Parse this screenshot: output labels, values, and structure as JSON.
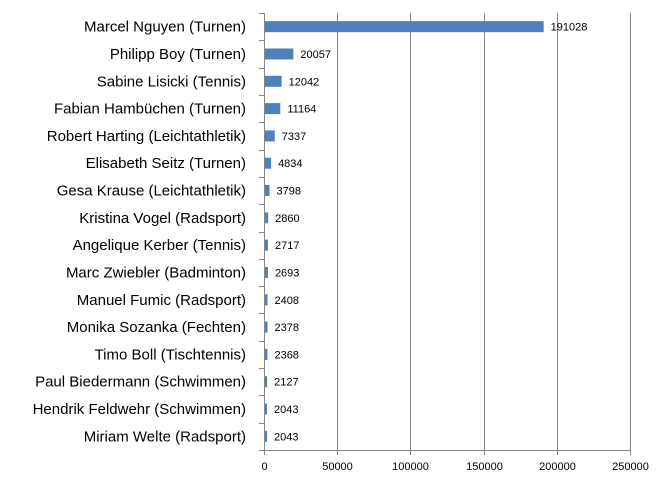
{
  "chart_data": {
    "type": "bar",
    "orientation": "horizontal",
    "title": "",
    "xlabel": "",
    "ylabel": "",
    "categories": [
      "Marcel Nguyen (Turnen)",
      "Philipp Boy (Turnen)",
      "Sabine Lisicki (Tennis)",
      "Fabian Hambüchen (Turnen)",
      "Robert Harting (Leichtathletik)",
      "Elisabeth Seitz (Turnen)",
      "Gesa Krause (Leichtathletik)",
      "Kristina Vogel (Radsport)",
      "Angelique Kerber (Tennis)",
      "Marc Zwiebler (Badminton)",
      "Manuel Fumic (Radsport)",
      "Monika Sozanka (Fechten)",
      "Timo Boll (Tischtennis)",
      "Paul Biedermann (Schwimmen)",
      "Hendrik Feldwehr (Schwimmen)",
      "Miriam Welte (Radsport)"
    ],
    "values": [
      191028,
      20057,
      12042,
      11164,
      7337,
      4834,
      3798,
      2860,
      2717,
      2693,
      2408,
      2378,
      2368,
      2127,
      2043,
      2043
    ],
    "value_labels": [
      "191028",
      "20057",
      "12042",
      "11164",
      "7337",
      "4834",
      "3798",
      "2860",
      "2717",
      "2693",
      "2408",
      "2378",
      "2368",
      "2127",
      "2043",
      "2043"
    ],
    "xlim": [
      0,
      250000
    ],
    "xticks": [
      0,
      50000,
      100000,
      150000,
      200000,
      250000
    ],
    "xtick_labels": [
      "0",
      "50000",
      "100000",
      "150000",
      "200000",
      "250000"
    ],
    "grid": "vertical",
    "legend": "none",
    "bar_color": "#4F81BD",
    "grid_color": "#868686"
  }
}
